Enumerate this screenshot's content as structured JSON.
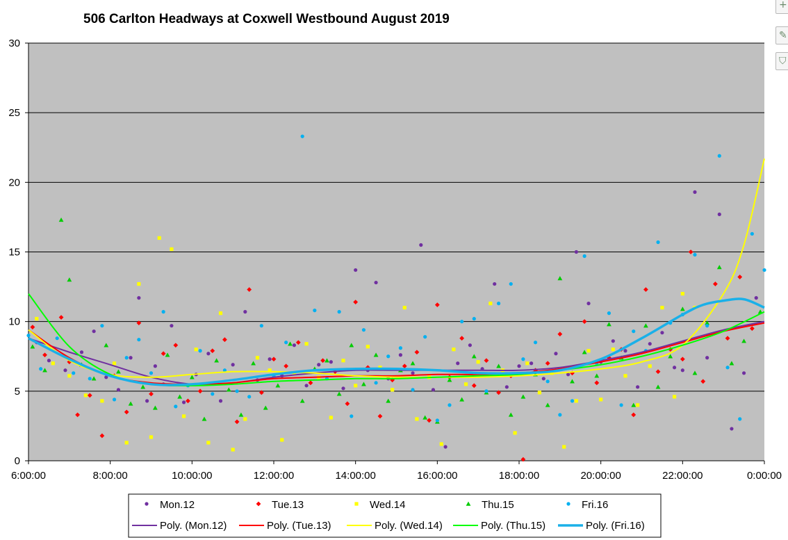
{
  "chart_data": {
    "type": "scatter",
    "title": "506 Carlton Headways at Coxwell Westbound August 2019",
    "xlabel": "",
    "ylabel": "",
    "xlim": [
      6,
      24
    ],
    "ylim": [
      0,
      30
    ],
    "x_tick_labels": [
      "6:00:00",
      "8:00:00",
      "10:00:00",
      "12:00:00",
      "14:00:00",
      "16:00:00",
      "18:00:00",
      "20:00:00",
      "22:00:00",
      "0:00:00"
    ],
    "x_tick_values": [
      6,
      8,
      10,
      12,
      14,
      16,
      18,
      20,
      22,
      24
    ],
    "y_tick_labels": [
      "0",
      "5",
      "10",
      "15",
      "20",
      "25",
      "30"
    ],
    "y_tick_values": [
      0,
      5,
      10,
      15,
      20,
      25,
      30
    ],
    "grid": "horizontal",
    "legend_position": "bottom",
    "series": [
      {
        "name": "Mon.12",
        "marker": "circle",
        "color": "#7030a0",
        "x": [
          6.2,
          6.5,
          6.9,
          7.3,
          7.6,
          7.9,
          8.2,
          8.5,
          8.7,
          8.9,
          9.1,
          9.3,
          9.5,
          9.8,
          10.1,
          10.4,
          10.7,
          11.0,
          11.3,
          11.6,
          11.9,
          12.2,
          12.5,
          12.8,
          13.1,
          13.4,
          13.7,
          14.0,
          14.3,
          14.5,
          14.8,
          15.1,
          15.4,
          15.6,
          15.9,
          16.2,
          16.5,
          16.8,
          17.1,
          17.4,
          17.7,
          18.0,
          18.3,
          18.6,
          18.9,
          19.2,
          19.4,
          19.7,
          20.0,
          20.3,
          20.6,
          20.9,
          21.2,
          21.5,
          21.8,
          22.0,
          22.3,
          22.6,
          22.9,
          23.2,
          23.5,
          23.8
        ],
        "y": [
          8.5,
          7.2,
          6.5,
          7.8,
          9.3,
          6.0,
          5.1,
          7.4,
          11.7,
          4.3,
          6.8,
          5.5,
          9.7,
          4.2,
          6.2,
          7.7,
          4.3,
          6.9,
          10.7,
          5.8,
          7.3,
          6.1,
          8.3,
          5.4,
          6.9,
          7.1,
          5.2,
          13.7,
          6.5,
          12.8,
          5.9,
          7.6,
          6.3,
          15.5,
          5.1,
          1.0,
          7.0,
          8.3,
          6.6,
          12.7,
          5.3,
          6.8,
          7.0,
          5.9,
          7.7,
          6.2,
          15.0,
          11.3,
          7.1,
          8.6,
          7.9,
          5.3,
          8.4,
          9.2,
          6.7,
          6.5,
          19.3,
          7.4,
          17.7,
          2.3,
          6.3,
          11.7
        ]
      },
      {
        "name": "Tue.13",
        "marker": "diamond",
        "color": "#ff0000",
        "x": [
          6.1,
          6.4,
          6.8,
          7.0,
          7.2,
          7.5,
          7.8,
          8.1,
          8.4,
          8.7,
          9.0,
          9.3,
          9.6,
          9.9,
          10.2,
          10.5,
          10.8,
          11.1,
          11.4,
          11.7,
          12.0,
          12.3,
          12.6,
          12.9,
          13.2,
          13.5,
          13.8,
          14.0,
          14.3,
          14.6,
          14.9,
          15.2,
          15.5,
          15.8,
          16.0,
          16.3,
          16.6,
          16.9,
          17.2,
          17.5,
          17.8,
          18.1,
          18.4,
          18.7,
          19.0,
          19.3,
          19.6,
          19.9,
          20.2,
          20.5,
          20.8,
          21.1,
          21.4,
          21.7,
          22.0,
          22.2,
          22.5,
          22.8,
          23.1,
          23.4,
          23.7
        ],
        "y": [
          9.6,
          7.6,
          10.3,
          7.1,
          3.3,
          4.7,
          1.8,
          6.1,
          3.5,
          9.9,
          4.8,
          7.7,
          8.3,
          4.3,
          5.0,
          7.9,
          8.7,
          2.8,
          12.3,
          4.9,
          7.3,
          6.8,
          8.5,
          5.6,
          7.2,
          6.4,
          4.1,
          11.4,
          6.7,
          3.2,
          5.8,
          6.8,
          7.8,
          2.9,
          11.2,
          6.0,
          8.8,
          5.4,
          7.2,
          4.9,
          6.1,
          0.1,
          6.5,
          7.0,
          9.1,
          6.3,
          10.0,
          5.6,
          7.4,
          8.0,
          3.3,
          12.3,
          6.4,
          8.0,
          7.3,
          15.0,
          5.7,
          12.7,
          8.8,
          13.2,
          9.5
        ]
      },
      {
        "name": "Wed.14",
        "marker": "square",
        "color": "#ffff00",
        "x": [
          6.2,
          6.6,
          7.0,
          7.4,
          7.8,
          8.1,
          8.4,
          8.7,
          9.0,
          9.2,
          9.5,
          9.8,
          10.1,
          10.4,
          10.7,
          11.0,
          11.3,
          11.6,
          11.9,
          12.2,
          12.5,
          12.8,
          13.1,
          13.4,
          13.7,
          14.0,
          14.3,
          14.6,
          14.9,
          15.2,
          15.5,
          15.8,
          16.1,
          16.4,
          16.7,
          17.0,
          17.3,
          17.6,
          17.9,
          18.2,
          18.5,
          18.8,
          19.1,
          19.4,
          19.7,
          20.0,
          20.3,
          20.6,
          20.9,
          21.2,
          21.5,
          21.8,
          22.0,
          22.3
        ],
        "y": [
          10.2,
          7.0,
          6.1,
          4.7,
          4.3,
          7.0,
          1.3,
          12.7,
          1.7,
          16.0,
          15.2,
          3.2,
          8.0,
          1.3,
          10.6,
          0.8,
          3.0,
          7.4,
          6.5,
          1.5,
          6.3,
          8.4,
          6.0,
          3.1,
          7.2,
          5.4,
          8.2,
          6.7,
          5.1,
          11.0,
          3.0,
          6.0,
          1.2,
          8.0,
          5.5,
          7.1,
          11.3,
          6.5,
          2.0,
          7.0,
          4.9,
          6.3,
          1.0,
          4.3,
          7.9,
          4.4,
          8.0,
          6.1,
          4.0,
          6.8,
          11.0,
          4.6,
          12.0,
          11.0
        ]
      },
      {
        "name": "Thu.15",
        "marker": "triangle",
        "color": "#00cc00",
        "x": [
          6.1,
          6.4,
          6.8,
          7.0,
          7.3,
          7.6,
          7.9,
          8.2,
          8.5,
          8.8,
          9.1,
          9.4,
          9.7,
          10.0,
          10.3,
          10.6,
          10.9,
          11.2,
          11.5,
          11.8,
          12.1,
          12.4,
          12.7,
          13.0,
          13.3,
          13.6,
          13.9,
          14.2,
          14.5,
          14.8,
          15.1,
          15.4,
          15.7,
          16.0,
          16.3,
          16.6,
          16.9,
          17.2,
          17.5,
          17.8,
          18.1,
          18.4,
          18.7,
          19.0,
          19.3,
          19.6,
          19.9,
          20.2,
          20.5,
          20.8,
          21.1,
          21.4,
          21.7,
          22.0,
          22.3,
          22.6,
          22.9,
          23.2,
          23.5,
          23.9
        ],
        "y": [
          8.2,
          6.5,
          17.3,
          13.0,
          6.9,
          5.9,
          8.3,
          6.4,
          4.1,
          5.3,
          3.8,
          7.6,
          4.6,
          6.0,
          3.0,
          7.2,
          5.1,
          3.3,
          7.0,
          3.8,
          5.4,
          8.4,
          4.3,
          6.6,
          7.2,
          4.8,
          8.3,
          5.5,
          7.6,
          4.3,
          6.5,
          7.0,
          3.1,
          2.8,
          5.8,
          4.4,
          7.5,
          4.9,
          6.8,
          3.3,
          4.6,
          6.2,
          4.0,
          13.1,
          5.7,
          7.8,
          6.1,
          9.8,
          7.4,
          4.0,
          9.7,
          5.3,
          7.5,
          10.9,
          6.3,
          9.9,
          13.9,
          7.0,
          8.6,
          10.7
        ]
      },
      {
        "name": "Fri.16",
        "marker": "circle",
        "color": "#00b0f0",
        "x": [
          6.0,
          6.3,
          6.7,
          7.1,
          7.5,
          7.8,
          8.1,
          8.4,
          8.7,
          9.0,
          9.3,
          9.6,
          9.9,
          10.2,
          10.5,
          10.8,
          11.1,
          11.4,
          11.7,
          12.0,
          12.3,
          12.7,
          13.0,
          13.3,
          13.6,
          13.9,
          14.2,
          14.5,
          14.8,
          15.1,
          15.4,
          15.7,
          16.0,
          16.3,
          16.6,
          16.9,
          17.2,
          17.5,
          17.8,
          18.1,
          18.4,
          18.7,
          19.0,
          19.3,
          19.6,
          19.9,
          20.2,
          20.5,
          20.8,
          21.1,
          21.4,
          21.7,
          22.0,
          22.3,
          22.6,
          22.9,
          23.1,
          23.4,
          23.7,
          24.0
        ],
        "y": [
          9.0,
          6.6,
          8.8,
          6.3,
          5.9,
          9.7,
          4.4,
          7.4,
          8.7,
          6.3,
          10.7,
          3.9,
          5.4,
          7.9,
          4.8,
          6.5,
          5.0,
          4.6,
          9.7,
          6.1,
          8.5,
          23.3,
          10.8,
          5.9,
          10.7,
          3.2,
          9.4,
          5.6,
          7.5,
          8.1,
          5.1,
          8.9,
          2.9,
          4.0,
          10.0,
          10.2,
          5.0,
          11.3,
          12.7,
          7.3,
          8.5,
          5.7,
          3.3,
          4.3,
          14.7,
          7.0,
          10.6,
          4.0,
          9.3,
          7.9,
          15.7,
          9.9,
          10.5,
          14.8,
          9.7,
          21.9,
          6.7,
          3.0,
          16.3,
          13.7
        ]
      }
    ],
    "trendlines": [
      {
        "name": "Poly. (Mon.12)",
        "color": "#7030a0",
        "width": 2,
        "x": [
          6,
          7,
          8,
          9,
          10,
          11,
          12,
          13,
          14,
          15,
          16,
          17,
          18,
          19,
          20,
          21,
          22,
          23,
          24
        ],
        "y": [
          8.8,
          7.8,
          6.9,
          6.0,
          5.5,
          5.6,
          6.0,
          6.3,
          6.5,
          6.5,
          6.5,
          6.5,
          6.5,
          6.7,
          7.2,
          7.8,
          8.6,
          9.4,
          10.0
        ]
      },
      {
        "name": "Poly. (Tue.13)",
        "color": "#ff0000",
        "width": 2,
        "x": [
          6,
          7,
          8,
          9,
          10,
          11,
          12,
          13,
          14,
          15,
          16,
          17,
          18,
          19,
          20,
          21,
          22,
          23,
          24
        ],
        "y": [
          9.4,
          7.4,
          6.1,
          5.6,
          5.5,
          5.6,
          5.9,
          6.0,
          6.1,
          6.1,
          6.2,
          6.2,
          6.3,
          6.6,
          7.1,
          7.7,
          8.5,
          9.3,
          9.9
        ]
      },
      {
        "name": "Poly. (Wed.14)",
        "color": "#ffff00",
        "width": 2,
        "x": [
          6,
          7,
          8,
          9,
          10,
          11,
          12,
          13,
          14,
          15,
          16,
          17,
          18,
          19,
          20,
          21,
          22,
          23,
          23.5,
          24
        ],
        "y": [
          9.4,
          7.2,
          6.2,
          6.0,
          6.2,
          6.4,
          6.4,
          6.3,
          6.1,
          6.0,
          6.0,
          6.0,
          6.1,
          6.3,
          6.6,
          7.1,
          8.3,
          12.0,
          15.5,
          21.7
        ]
      },
      {
        "name": "Poly. (Thu.15)",
        "color": "#00ff00",
        "width": 2,
        "x": [
          6,
          7,
          8,
          9,
          10,
          11,
          12,
          13,
          14,
          15,
          16,
          17,
          18,
          19,
          20,
          21,
          22,
          23,
          24
        ],
        "y": [
          12.0,
          8.2,
          6.2,
          5.5,
          5.4,
          5.5,
          5.7,
          5.8,
          5.9,
          5.9,
          6.0,
          6.1,
          6.2,
          6.5,
          6.9,
          7.5,
          8.3,
          9.3,
          10.7
        ]
      },
      {
        "name": "Poly. (Fri.16)",
        "color": "#1ab0e8",
        "width": 3.5,
        "x": [
          6,
          7,
          8,
          9,
          10,
          11,
          12,
          13,
          14,
          15,
          16,
          17,
          18,
          19,
          20,
          21,
          22,
          22.5,
          23,
          23.5,
          24
        ],
        "y": [
          8.8,
          7.3,
          6.1,
          5.5,
          5.5,
          5.8,
          6.2,
          6.5,
          6.6,
          6.6,
          6.5,
          6.3,
          6.3,
          6.5,
          7.3,
          8.8,
          10.5,
          11.2,
          11.5,
          11.6,
          11.0
        ]
      }
    ]
  },
  "toolbar": {
    "add_icon": "plus-icon",
    "style_icon": "brush-icon",
    "filter_icon": "filter-icon"
  }
}
